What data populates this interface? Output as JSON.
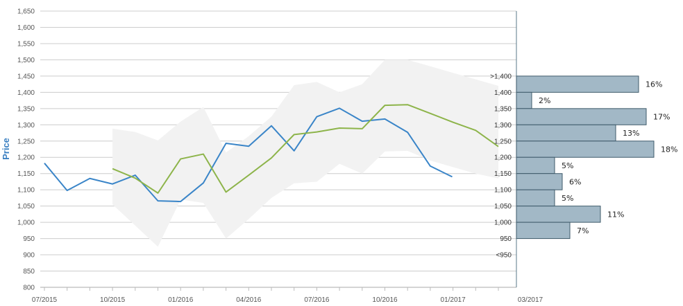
{
  "chart_data": {
    "type": "line",
    "ylabel": "Price",
    "xlabel": "",
    "ylim": [
      800,
      1650
    ],
    "y_ticks": [
      "800",
      "850",
      "900",
      "950",
      "1,000",
      "1,050",
      "1,100",
      "1,150",
      "1,200",
      "1,250",
      "1,300",
      "1,350",
      "1,400",
      "1,450",
      "1,500",
      "1,550",
      "1,600",
      "1,650"
    ],
    "x_tick_labels": [
      "07/2015",
      "10/2015",
      "01/2016",
      "04/2016",
      "07/2016",
      "10/2016",
      "01/2017",
      "03/2017"
    ],
    "series": [
      {
        "color": "#3a85c8",
        "x": [
          "2015-07",
          "2015-08",
          "2015-09",
          "2015-10",
          "2015-11",
          "2015-12",
          "2016-01",
          "2016-02",
          "2016-03",
          "2016-04",
          "2016-05",
          "2016-06",
          "2016-07",
          "2016-08",
          "2016-09",
          "2016-10",
          "2016-11",
          "2016-12",
          "2016-12-30"
        ],
        "values": [
          1182,
          1098,
          1135,
          1118,
          1145,
          1066,
          1064,
          1121,
          1243,
          1234,
          1297,
          1220,
          1325,
          1351,
          1311,
          1318,
          1277,
          1173,
          1140
        ]
      },
      {
        "color": "#8db44a",
        "x": [
          "2015-10",
          "2015-11",
          "2015-12",
          "2016-01",
          "2016-02",
          "2016-03",
          "2016-04",
          "2016-05",
          "2016-06",
          "2016-07",
          "2016-08",
          "2016-09",
          "2016-10",
          "2016-11",
          "2016-12",
          "2017-01",
          "2017-02",
          "2017-03"
        ],
        "values": [
          1165,
          1136,
          1090,
          1195,
          1210,
          1093,
          1145,
          1198,
          1270,
          1278,
          1290,
          1288,
          1360,
          1362,
          1335,
          1308,
          1283,
          1233
        ]
      }
    ],
    "band": {
      "color": "#f2f2f2",
      "x": [
        "2015-10",
        "2015-11",
        "2015-12",
        "2016-01",
        "2016-02",
        "2016-03",
        "2016-04",
        "2016-05",
        "2016-06",
        "2016-07",
        "2016-08",
        "2016-09",
        "2016-10",
        "2016-11",
        "2016-12",
        "2017-01",
        "2017-02",
        "2017-03"
      ],
      "upper": [
        1288,
        1278,
        1252,
        1310,
        1355,
        1215,
        1265,
        1325,
        1422,
        1432,
        1400,
        1425,
        1500,
        1500,
        1480,
        1460,
        1440,
        1420
      ],
      "lower": [
        1055,
        990,
        925,
        1070,
        1060,
        950,
        1010,
        1075,
        1120,
        1125,
        1180,
        1150,
        1218,
        1220,
        1190,
        1170,
        1150,
        1135
      ]
    },
    "distribution": {
      "color": "#a2b8c6",
      "bins": [
        {
          "label": ">1,400",
          "low": 1400,
          "high": 1450,
          "percent": 16,
          "percent_label": "16%"
        },
        {
          "label": "1,400",
          "low": 1350,
          "high": 1400,
          "percent": 2,
          "percent_label": "2%"
        },
        {
          "label": "1,350",
          "low": 1300,
          "high": 1350,
          "percent": 17,
          "percent_label": "17%"
        },
        {
          "label": "1,300",
          "low": 1250,
          "high": 1300,
          "percent": 13,
          "percent_label": "13%"
        },
        {
          "label": "1,250",
          "low": 1200,
          "high": 1250,
          "percent": 18,
          "percent_label": "18%"
        },
        {
          "label": "1,200",
          "low": 1150,
          "high": 1200,
          "percent": 5,
          "percent_label": "5%"
        },
        {
          "label": "1,150",
          "low": 1100,
          "high": 1150,
          "percent": 6,
          "percent_label": "6%"
        },
        {
          "label": "1,100",
          "low": 1050,
          "high": 1100,
          "percent": 5,
          "percent_label": "5%"
        },
        {
          "label": "1,050",
          "low": 1000,
          "high": 1050,
          "percent": 11,
          "percent_label": "11%"
        },
        {
          "label": "1,000",
          "low": 950,
          "high": 1000,
          "percent": 7,
          "percent_label": "7%"
        },
        {
          "label": "950",
          "low": 900,
          "high": 950,
          "percent": 0,
          "percent_label": ""
        },
        {
          "label": "<950",
          "low": 850,
          "high": 900,
          "percent": 0,
          "percent_label": ""
        }
      ]
    },
    "grid": true
  }
}
